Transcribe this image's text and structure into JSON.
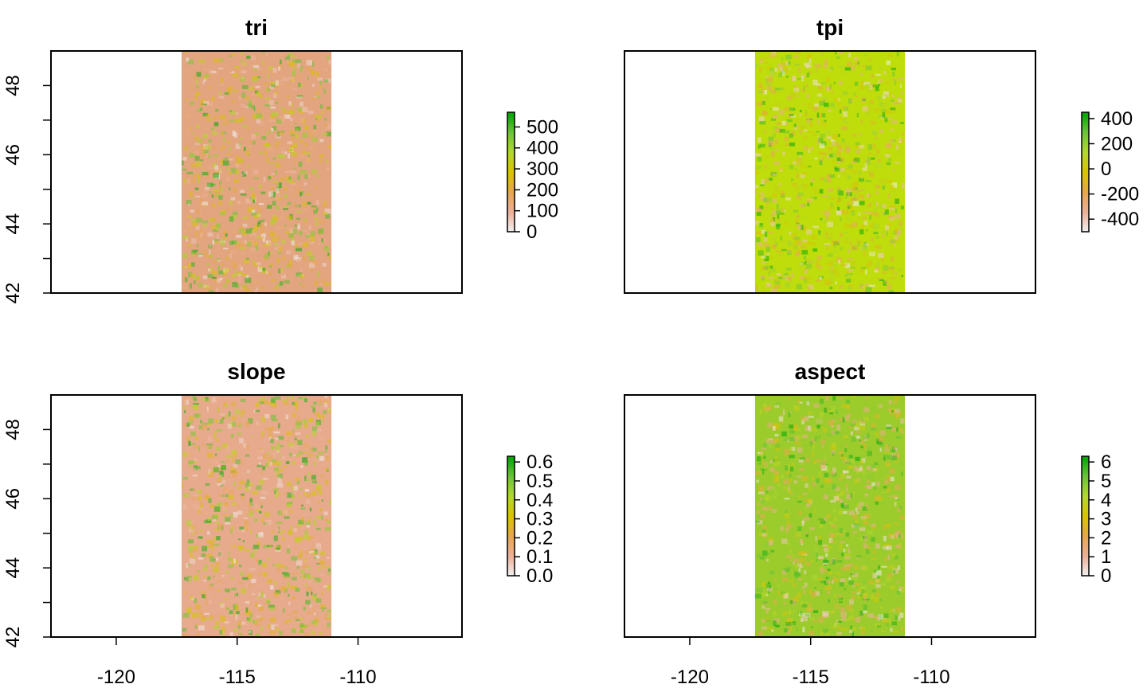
{
  "chart_data": [
    {
      "type": "heatmap",
      "title": "tri",
      "xlabel": "",
      "ylabel": "",
      "xlim": [
        -122.7,
        -105.7
      ],
      "ylim": [
        42,
        49
      ],
      "raster_extent": {
        "x": [
          -117.3,
          -111.1
        ],
        "y": [
          42,
          49
        ]
      },
      "x_ticks": [],
      "x_tick_labels": [],
      "y_ticks": [
        42,
        43,
        44,
        45,
        46,
        47,
        48
      ],
      "y_tick_labels": [
        "42",
        "",
        "44",
        "",
        "46",
        "",
        "48"
      ],
      "legend": {
        "range": [
          0,
          570
        ],
        "ticks": [
          0,
          100,
          200,
          300,
          400,
          500
        ],
        "labels": [
          "0",
          "100",
          "200",
          "300",
          "400",
          "500"
        ],
        "position": "right"
      },
      "palette": [
        "#f2f2f2",
        "#ebb09a",
        "#e7a64f",
        "#d9c400",
        "#b4d82e",
        "#6cc33a",
        "#00a600"
      ],
      "dominant_color": "#e2a580"
    },
    {
      "type": "heatmap",
      "title": "tpi",
      "xlabel": "",
      "ylabel": "",
      "xlim": [
        -122.7,
        -105.7
      ],
      "ylim": [
        42,
        49
      ],
      "raster_extent": {
        "x": [
          -117.3,
          -111.1
        ],
        "y": [
          42,
          49
        ]
      },
      "x_ticks": [],
      "x_tick_labels": [],
      "y_ticks": [],
      "y_tick_labels": [],
      "legend": {
        "range": [
          -500,
          450
        ],
        "ticks": [
          -400,
          -200,
          0,
          200,
          400
        ],
        "labels": [
          "-400",
          "-200",
          "0",
          "200",
          "400"
        ],
        "position": "right"
      },
      "palette": [
        "#f2f2f2",
        "#ebb09a",
        "#e7a64f",
        "#d9c400",
        "#b4d82e",
        "#6cc33a",
        "#00a600"
      ],
      "dominant_color": "#bedd0b"
    },
    {
      "type": "heatmap",
      "title": "slope",
      "xlabel": "",
      "ylabel": "",
      "xlim": [
        -122.7,
        -105.7
      ],
      "ylim": [
        42,
        49
      ],
      "raster_extent": {
        "x": [
          -117.3,
          -111.1
        ],
        "y": [
          42,
          49
        ]
      },
      "x_ticks": [
        -120,
        -115,
        -110
      ],
      "x_tick_labels": [
        "-120",
        "-115",
        "-110"
      ],
      "y_ticks": [
        42,
        43,
        44,
        45,
        46,
        47,
        48
      ],
      "y_tick_labels": [
        "42",
        "",
        "44",
        "",
        "46",
        "",
        "48"
      ],
      "legend": {
        "range": [
          0,
          0.63
        ],
        "ticks": [
          0,
          0.1,
          0.2,
          0.3,
          0.4,
          0.5,
          0.6
        ],
        "labels": [
          "0.0",
          "0.1",
          "0.2",
          "0.3",
          "0.4",
          "0.5",
          "0.6"
        ],
        "position": "right"
      },
      "palette": [
        "#f2f2f2",
        "#ebb09a",
        "#e7a64f",
        "#d9c400",
        "#b4d82e",
        "#6cc33a",
        "#00a600"
      ],
      "dominant_color": "#e7aa8c"
    },
    {
      "type": "heatmap",
      "title": "aspect",
      "xlabel": "",
      "ylabel": "",
      "xlim": [
        -122.7,
        -105.7
      ],
      "ylim": [
        42,
        49
      ],
      "raster_extent": {
        "x": [
          -117.3,
          -111.1
        ],
        "y": [
          42,
          49
        ]
      },
      "x_ticks": [
        -120,
        -115,
        -110
      ],
      "x_tick_labels": [
        "-120",
        "-115",
        "-110"
      ],
      "y_ticks": [],
      "y_tick_labels": [],
      "legend": {
        "range": [
          0,
          6.3
        ],
        "ticks": [
          0,
          1,
          2,
          3,
          4,
          5,
          6
        ],
        "labels": [
          "0",
          "1",
          "2",
          "3",
          "4",
          "5",
          "6"
        ],
        "position": "right"
      },
      "palette": [
        "#f2f2f2",
        "#ebb09a",
        "#e7a64f",
        "#d9c400",
        "#b4d82e",
        "#6cc33a",
        "#00a600"
      ],
      "dominant_color": "#9ccc2c"
    }
  ]
}
